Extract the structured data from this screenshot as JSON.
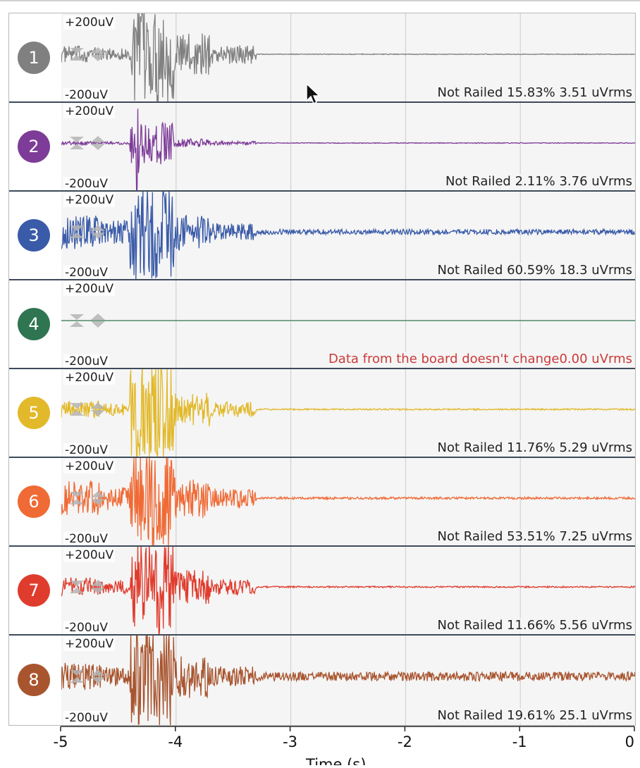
{
  "channels": [
    {
      "number": "1",
      "color": "#808080",
      "scale_top": "+200uV",
      "scale_bottom": "-200uV",
      "status": "Not Railed 15.83% 3.51 uVrms",
      "warning": false,
      "amp": {
        "pre": 0.22,
        "burst1": 0.8,
        "burst2": 1.3,
        "tail": 0.25,
        "base": 0.01
      }
    },
    {
      "number": "2",
      "color": "#7d3c98",
      "scale_top": "+200uV",
      "scale_bottom": "-200uV",
      "status": "Not Railed 2.11% 3.76 uVrms",
      "warning": false,
      "amp": {
        "pre": 0.05,
        "burst1": 0.1,
        "burst2": 0.55,
        "tail": 0.05,
        "base": 0.01
      }
    },
    {
      "number": "3",
      "color": "#3a5ba8",
      "scale_top": "+200uV",
      "scale_bottom": "-200uV",
      "status": "Not Railed 60.59% 18.3 uVrms",
      "warning": false,
      "amp": {
        "pre": 0.45,
        "burst1": 0.6,
        "burst2": 1.3,
        "tail": 0.22,
        "base": 0.07
      }
    },
    {
      "number": "4",
      "color": "#2f7552",
      "scale_top": "+200uV",
      "scale_bottom": "-200uV",
      "status": "Data from the board doesn't change0.00 uVrms",
      "warning": true,
      "amp": {
        "pre": 0,
        "burst1": 0,
        "burst2": 0,
        "tail": 0,
        "base": 0
      }
    },
    {
      "number": "5",
      "color": "#e2b92a",
      "scale_top": "+200uV",
      "scale_bottom": "-200uV",
      "status": "Not Railed 11.76% 5.29 uVrms",
      "warning": false,
      "amp": {
        "pre": 0.22,
        "burst1": 0.75,
        "burst2": 1.3,
        "tail": 0.2,
        "base": 0.02
      }
    },
    {
      "number": "6",
      "color": "#f06a35",
      "scale_top": "+200uV",
      "scale_bottom": "-200uV",
      "status": "Not Railed 53.51% 7.25 uVrms",
      "warning": false,
      "amp": {
        "pre": 0.45,
        "burst1": 0.6,
        "burst2": 1.3,
        "tail": 0.25,
        "base": 0.03
      }
    },
    {
      "number": "7",
      "color": "#e03c2d",
      "scale_top": "+200uV",
      "scale_bottom": "-200uV",
      "status": "Not Railed 11.66% 5.56 uVrms",
      "warning": false,
      "amp": {
        "pre": 0.25,
        "burst1": 0.7,
        "burst2": 1.3,
        "tail": 0.2,
        "base": 0.02
      }
    },
    {
      "number": "8",
      "color": "#a8552f",
      "scale_top": "+200uV",
      "scale_bottom": "-200uV",
      "status": "Not Railed 19.61% 25.1 uVrms",
      "warning": false,
      "amp": {
        "pre": 0.35,
        "burst1": 0.6,
        "burst2": 1.3,
        "tail": 0.25,
        "base": 0.12
      }
    }
  ],
  "x_axis": {
    "ticks": [
      "-5",
      "-4",
      "-3",
      "-2",
      "-1",
      "0"
    ],
    "range": [
      -5,
      0
    ],
    "label": "Time (s)"
  },
  "colors": {
    "plot_bg": "#f5f5f5",
    "grid": "#cccccc",
    "separator": "#3e4a5a",
    "warning_text": "#cc3a3a"
  },
  "icons": [
    "vertical-scale-collapse-icon",
    "vertical-scale-expand-icon",
    "mouse-pointer-icon"
  ]
}
